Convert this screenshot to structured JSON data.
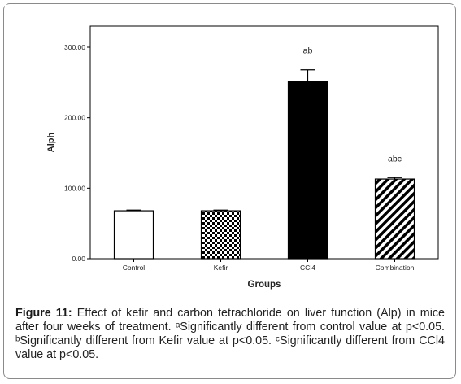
{
  "chart_data": {
    "type": "bar",
    "categories": [
      "Control",
      "Kefir",
      "CCl4",
      "Combination"
    ],
    "values": [
      68,
      68,
      251,
      113
    ],
    "errors": [
      1,
      1,
      17,
      2
    ],
    "annotations": [
      "",
      "",
      "ab",
      "abc"
    ],
    "patterns": [
      "white",
      "checker",
      "black",
      "diagonal-stripes"
    ],
    "xlabel": "Groups",
    "ylabel": "Alph",
    "ylim": [
      0,
      330
    ],
    "yticks": [
      0,
      100,
      200,
      300
    ],
    "ytick_labels": [
      "0.00",
      "100.00",
      "200.00",
      "300.00"
    ],
    "grid": false,
    "legend": "none"
  },
  "caption": {
    "label": "Figure 11:",
    "text": " Effect of kefir and carbon tetrachloride on liver function (Alp) in mice after four weeks of treatment. ᵃSignificantly different from control value at p<0.05. ᵇSignificantly different from Kefir value at p<0.05. ᶜSignificantly different from CCl4 value at p<0.05."
  },
  "colors": {
    "bar_outline": "#000000",
    "panel_background": "#ffffff",
    "frame_border": "#8a8a8a"
  }
}
